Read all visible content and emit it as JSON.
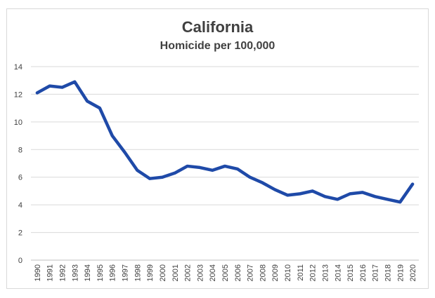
{
  "chart_data": {
    "type": "line",
    "title": "California",
    "subtitle": "Homicide per 100,000",
    "xlabel": "",
    "ylabel": "",
    "ylim": [
      0,
      14
    ],
    "yticks": [
      "0",
      "2",
      "4",
      "6",
      "8",
      "10",
      "12",
      "14"
    ],
    "grid": true,
    "legend": "none",
    "color": "#1f4aa8",
    "x": [
      "1990",
      "1991",
      "1992",
      "1993",
      "1994",
      "1995",
      "1996",
      "1997",
      "1998",
      "1999",
      "2000",
      "2001",
      "2002",
      "2003",
      "2004",
      "2005",
      "2006",
      "2007",
      "2008",
      "2009",
      "2010",
      "2011",
      "2012",
      "2013",
      "2014",
      "2015",
      "2016",
      "2017",
      "2018",
      "2019",
      "2020"
    ],
    "series": [
      {
        "values": [
          12.1,
          12.6,
          12.5,
          12.9,
          11.5,
          11.0,
          9.0,
          7.8,
          6.5,
          5.9,
          6.0,
          6.3,
          6.8,
          6.7,
          6.5,
          6.8,
          6.6,
          6.0,
          5.6,
          5.1,
          4.7,
          4.8,
          5.0,
          4.6,
          4.4,
          4.8,
          4.9,
          4.6,
          4.4,
          4.2,
          5.5
        ]
      }
    ]
  }
}
